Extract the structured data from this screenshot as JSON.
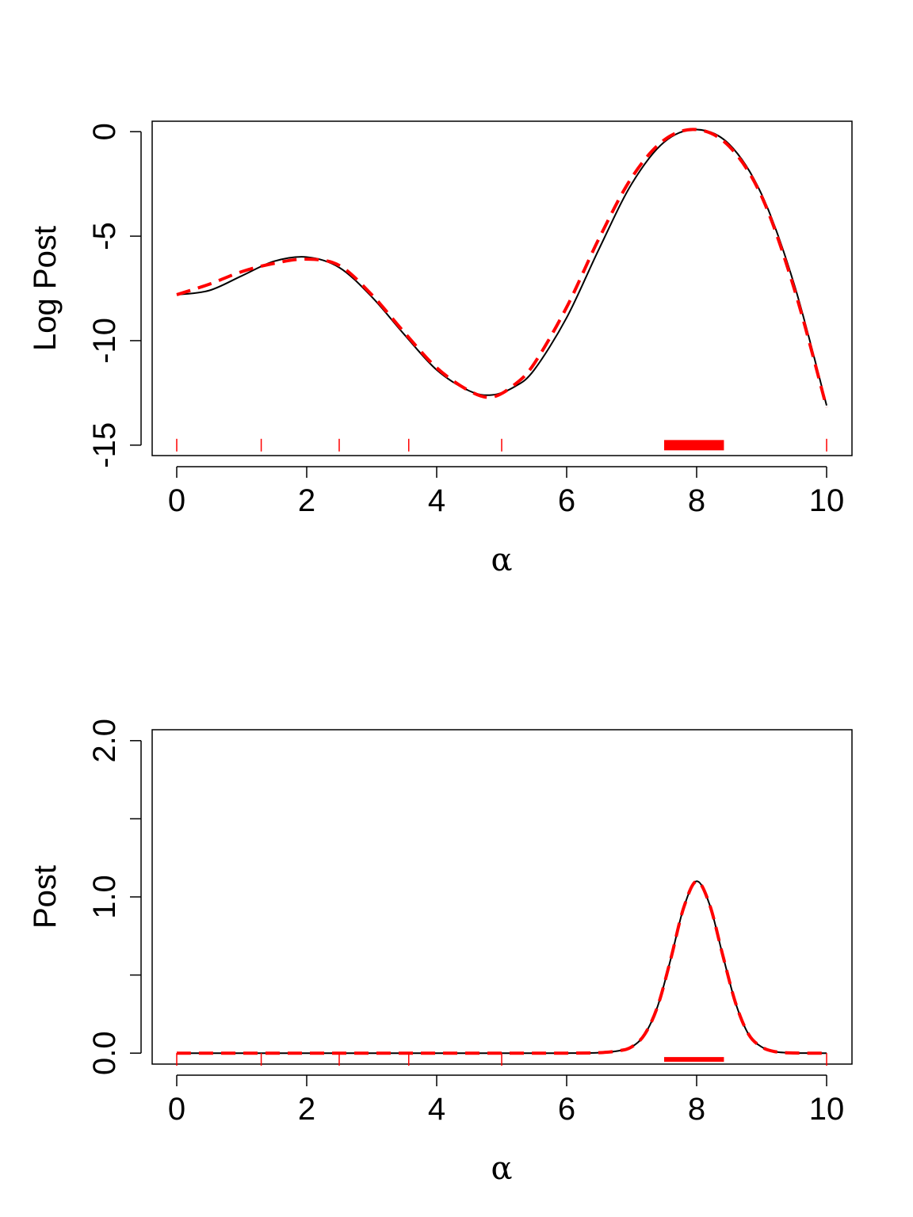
{
  "chart_data": [
    {
      "type": "line",
      "xlabel": "α",
      "ylabel": "Log Post",
      "xlim": [
        0,
        10
      ],
      "ylim": [
        -15.5,
        0.5
      ],
      "xticks": [
        0,
        2,
        4,
        6,
        8,
        10
      ],
      "xtick_labels": [
        "0",
        "2",
        "4",
        "6",
        "8",
        "10"
      ],
      "yticks": [
        -15,
        -10,
        -5,
        0
      ],
      "ytick_labels": [
        "-15",
        "-10",
        "-5",
        "0"
      ],
      "grid": false,
      "series": [
        {
          "style": "solid",
          "color": "#000000",
          "x": [
            0,
            0.5,
            1,
            1.5,
            2,
            2.5,
            3,
            3.5,
            4,
            4.5,
            4.85,
            5.2,
            5.5,
            6,
            6.5,
            7,
            7.5,
            8,
            8.5,
            9,
            9.5,
            10
          ],
          "y": [
            -7.8,
            -7.6,
            -6.9,
            -6.2,
            -6.0,
            -6.5,
            -7.9,
            -9.7,
            -11.4,
            -12.4,
            -12.6,
            -12.2,
            -11.4,
            -8.9,
            -5.6,
            -2.5,
            -0.5,
            0.1,
            -0.6,
            -3.0,
            -7.3,
            -13.1
          ]
        },
        {
          "style": "dashed",
          "color": "#ff0000",
          "x": [
            0,
            0.5,
            1,
            1.5,
            2,
            2.5,
            3,
            3.5,
            4,
            4.5,
            4.85,
            5.2,
            5.5,
            6,
            6.5,
            7,
            7.5,
            8,
            8.5,
            9,
            9.5,
            10
          ],
          "y": [
            -7.8,
            -7.3,
            -6.7,
            -6.3,
            -6.1,
            -6.4,
            -7.8,
            -9.6,
            -11.3,
            -12.4,
            -12.7,
            -12.1,
            -11.1,
            -8.4,
            -5.1,
            -2.2,
            -0.4,
            0.1,
            -0.7,
            -3.1,
            -7.5,
            -13.2
          ]
        }
      ],
      "rug": [
        0,
        1.3,
        2.5,
        3.57,
        5.0,
        10
      ],
      "interval": [
        7.5,
        8.42
      ],
      "interval_y": -15
    },
    {
      "type": "line",
      "xlabel": "α",
      "ylabel": "Post",
      "xlim": [
        0,
        10
      ],
      "ylim": [
        -0.07,
        2.07
      ],
      "xticks": [
        0,
        2,
        4,
        6,
        8,
        10
      ],
      "xtick_labels": [
        "0",
        "2",
        "4",
        "6",
        "8",
        "10"
      ],
      "yticks": [
        0,
        0.5,
        1.0,
        1.5,
        2.0
      ],
      "ytick_labels": [
        "0.0",
        "",
        "1.0",
        "",
        "2.0"
      ],
      "grid": false,
      "series": [
        {
          "style": "solid",
          "color": "#000000",
          "x": [
            0,
            1,
            2,
            3,
            4,
            5,
            6,
            6.5,
            6.8,
            7.0,
            7.2,
            7.4,
            7.6,
            7.8,
            8.0,
            8.2,
            8.4,
            8.6,
            8.8,
            9.0,
            9.2,
            9.5,
            10
          ],
          "y": [
            0,
            0,
            0,
            0,
            0,
            0,
            0,
            0.003,
            0.015,
            0.04,
            0.12,
            0.3,
            0.6,
            0.93,
            1.1,
            0.95,
            0.63,
            0.32,
            0.12,
            0.04,
            0.01,
            0.001,
            0
          ]
        },
        {
          "style": "dashed",
          "color": "#ff0000",
          "x": [
            0,
            1,
            2,
            3,
            4,
            5,
            6,
            6.5,
            6.8,
            7.0,
            7.2,
            7.4,
            7.6,
            7.8,
            8.0,
            8.2,
            8.4,
            8.6,
            8.8,
            9.0,
            9.2,
            9.5,
            10
          ],
          "y": [
            0,
            0,
            0,
            0,
            0,
            0,
            0,
            0.003,
            0.015,
            0.04,
            0.12,
            0.3,
            0.6,
            0.93,
            1.1,
            0.95,
            0.63,
            0.32,
            0.12,
            0.04,
            0.01,
            0.001,
            0
          ]
        }
      ],
      "rug": [
        0,
        1.3,
        2.5,
        3.57,
        5.0,
        10
      ],
      "interval": [
        7.5,
        8.42
      ],
      "interval_y": -0.04
    }
  ]
}
